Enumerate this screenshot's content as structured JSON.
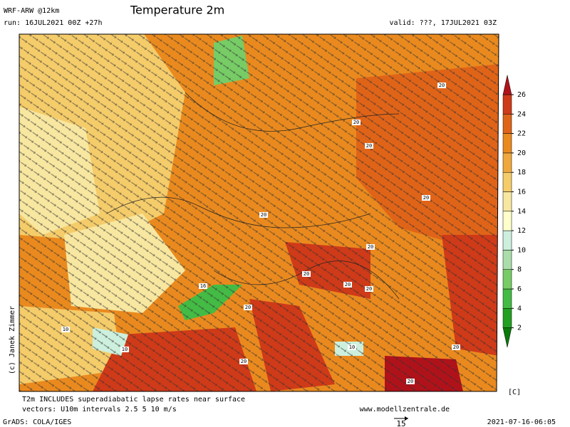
{
  "header": {
    "model": "WRF-ARW @12km",
    "title": "Temperature 2m",
    "run": "run: 16JUL2021 00Z +27h",
    "valid": "valid: ???, 17JUL2021 03Z"
  },
  "map": {
    "credit": "(c) Janek Zimmer",
    "contour_labels": [
      "20",
      "20",
      "20",
      "20",
      "20",
      "20",
      "20",
      "20",
      "20",
      "16",
      "10",
      "10",
      "10",
      "20",
      "20",
      "20",
      "20"
    ]
  },
  "colorbar": {
    "ticks": [
      2,
      4,
      6,
      8,
      10,
      12,
      14,
      16,
      18,
      20,
      22,
      24,
      26
    ],
    "unit": "[C]",
    "colors": [
      "#0a7a0a",
      "#22a022",
      "#44bb44",
      "#77cc66",
      "#aaddaa",
      "#ccf0dd",
      "#ffffcc",
      "#f8e7a0",
      "#f5cc6a",
      "#f0a83c",
      "#ea8a1e",
      "#e06418",
      "#cf3a18",
      "#b0121a"
    ]
  },
  "footer": {
    "note1": "T2m INCLUDES superadiabatic lapse rates near surface",
    "note2": "vectors: U10m intervals 2.5 5 10 m/s",
    "site": "www.modellzentrale.de",
    "grads": "GrADS: COLA/IGES",
    "ref_vector": "15",
    "timestamp": "2021-07-16-06:05"
  }
}
